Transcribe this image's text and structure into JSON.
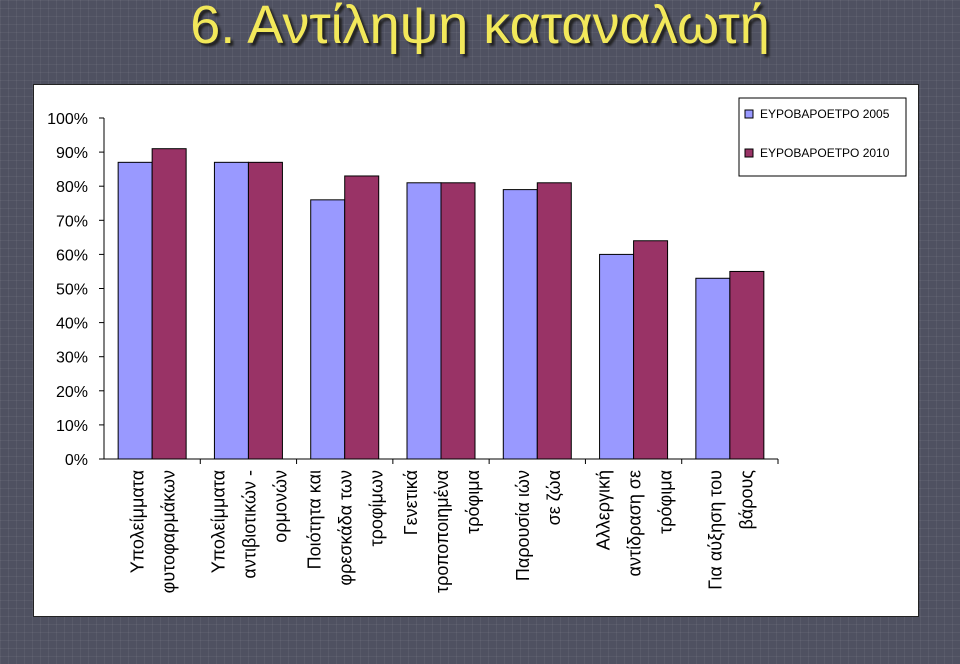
{
  "slide": {
    "title": "6. Αντίληψη καταναλωτή"
  },
  "colors": {
    "background": "#4f5161",
    "title": "#f2e85a",
    "series_2005": "#9999ff",
    "series_2010": "#993366"
  },
  "chart_data": {
    "type": "bar",
    "title": "",
    "xlabel": "",
    "ylabel": "",
    "ylim": [
      0,
      1
    ],
    "yticks": [
      "0%",
      "10%",
      "20%",
      "30%",
      "40%",
      "50%",
      "60%",
      "70%",
      "80%",
      "90%",
      "100%"
    ],
    "grid": false,
    "legend_position": "top-right",
    "categories": [
      [
        "Υπολείμματα",
        "φυτοφαρμάκων"
      ],
      [
        "Υπολείμματα",
        "αντιβιοτικών -",
        "ορμονών"
      ],
      [
        "Ποιότητα και",
        "φρεσκάδα των",
        "τροφίμων"
      ],
      [
        "Γενετικά",
        "τροποποιημένα",
        "τρόφιμα"
      ],
      [
        "Παρουσία ιών",
        "σε ζώα"
      ],
      [
        "Αλλεργική",
        "αντίδραση σε",
        "τρόφιμα"
      ],
      [
        "Για αύξηση του",
        "βάρους"
      ]
    ],
    "series": [
      {
        "name": "ΕΥΡΟΒΑΡΟΕΤΡΟ 2005",
        "color": "#9999ff",
        "values": [
          0.87,
          0.87,
          0.76,
          0.81,
          0.79,
          0.6,
          0.53
        ]
      },
      {
        "name": "ΕΥΡΟΒΑΡΟΕΤΡΟ 2010",
        "color": "#993366",
        "values": [
          0.91,
          0.87,
          0.83,
          0.81,
          0.81,
          0.64,
          0.55
        ]
      }
    ]
  }
}
